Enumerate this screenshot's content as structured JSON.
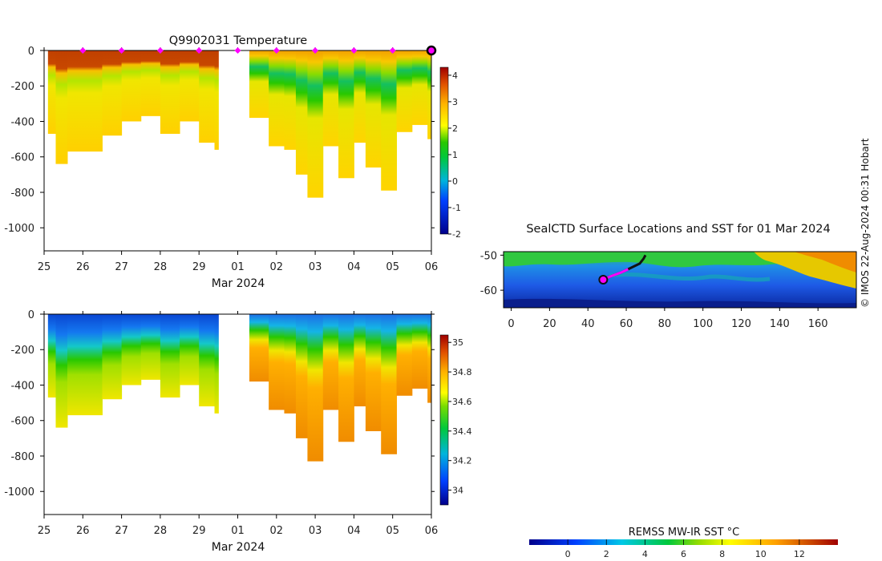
{
  "chart_data": [
    {
      "type": "heatmap",
      "id": "temperature",
      "title": "Q9902031  Temperature",
      "xlabel": "Mar 2024",
      "ylabel": "",
      "x_tick_labels": [
        "25",
        "26",
        "27",
        "28",
        "29",
        "01",
        "02",
        "03",
        "04",
        "05",
        "06"
      ],
      "y_ticks": [
        0,
        -200,
        -400,
        -600,
        -800,
        -1000
      ],
      "y_tick_labels": [
        "0",
        "-200",
        "-400",
        "-600",
        "-800",
        "-1000"
      ],
      "ylim": [
        -1130,
        0
      ],
      "gap_days": [
        4.5,
        5.2
      ],
      "surface_markers_days": [
        1,
        2,
        3,
        4,
        5,
        6,
        7,
        8,
        9,
        10
      ],
      "current_position_day": 10.0,
      "colorbar": {
        "min": -2,
        "max": 4.3,
        "ticks": [
          4,
          3,
          2,
          1,
          0,
          -1,
          -2
        ],
        "tick_labels": [
          "4",
          "3",
          "2",
          "1",
          "0",
          "-1",
          "-2"
        ]
      },
      "profile_depths": [
        {
          "day": 0.1,
          "depth": 470
        },
        {
          "day": 0.3,
          "depth": 640
        },
        {
          "day": 0.6,
          "depth": 570
        },
        {
          "day": 1.0,
          "depth": 570
        },
        {
          "day": 1.5,
          "depth": 480
        },
        {
          "day": 2.0,
          "depth": 400
        },
        {
          "day": 2.5,
          "depth": 370
        },
        {
          "day": 3.0,
          "depth": 470
        },
        {
          "day": 3.5,
          "depth": 400
        },
        {
          "day": 4.0,
          "depth": 520
        },
        {
          "day": 4.4,
          "depth": 560
        },
        {
          "day": 5.3,
          "depth": 380
        },
        {
          "day": 5.8,
          "depth": 540
        },
        {
          "day": 6.2,
          "depth": 560
        },
        {
          "day": 6.5,
          "depth": 700
        },
        {
          "day": 6.8,
          "depth": 830
        },
        {
          "day": 7.2,
          "depth": 540
        },
        {
          "day": 7.6,
          "depth": 720
        },
        {
          "day": 8.0,
          "depth": 520
        },
        {
          "day": 8.3,
          "depth": 660
        },
        {
          "day": 8.7,
          "depth": 790
        },
        {
          "day": 9.1,
          "depth": 460
        },
        {
          "day": 9.5,
          "depth": 420
        },
        {
          "day": 9.9,
          "depth": 500
        }
      ]
    },
    {
      "type": "heatmap",
      "id": "salinity",
      "title": "",
      "xlabel": "Mar 2024",
      "ylabel": "",
      "x_tick_labels": [
        "25",
        "26",
        "27",
        "28",
        "29",
        "01",
        "02",
        "03",
        "04",
        "05",
        "06"
      ],
      "y_ticks": [
        0,
        -200,
        -400,
        -600,
        -800,
        -1000
      ],
      "y_tick_labels": [
        "0",
        "-200",
        "-400",
        "-600",
        "-800",
        "-1000"
      ],
      "ylim": [
        -1130,
        0
      ],
      "colorbar": {
        "min": 33.9,
        "max": 35.05,
        "ticks": [
          35,
          34.8,
          34.6,
          34.4,
          34.2,
          34
        ],
        "tick_labels": [
          "35",
          "34.8",
          "34.6",
          "34.4",
          "34.2",
          "34"
        ]
      }
    },
    {
      "type": "heatmap",
      "id": "sst_map",
      "title": "SealCTD Surface Locations and SST for 01 Mar 2024",
      "x_ticks": [
        0,
        20,
        40,
        60,
        80,
        100,
        120,
        140,
        160
      ],
      "x_tick_labels": [
        "0",
        "20",
        "40",
        "60",
        "80",
        "100",
        "120",
        "140",
        "160"
      ],
      "y_ticks": [
        -50,
        -60
      ],
      "y_tick_labels": [
        "-50",
        "-60"
      ],
      "xlim": [
        -4,
        180
      ],
      "ylim": [
        -65,
        -49
      ],
      "track_longitude": [
        48,
        52,
        57,
        61,
        64,
        67,
        69,
        70
      ],
      "track_latitude": [
        -57,
        -56,
        -55,
        -54,
        -53.2,
        -52.4,
        -51,
        -50
      ],
      "current_position": {
        "longitude": 48,
        "latitude": -57
      },
      "colorbar": {
        "label": "REMSS MW-IR SST °C",
        "ticks": [
          0,
          2,
          4,
          6,
          8,
          10,
          12
        ],
        "tick_labels": [
          "0",
          "2",
          "4",
          "6",
          "8",
          "10",
          "12"
        ],
        "min": -2,
        "max": 14
      }
    }
  ],
  "footer": {
    "credit": "© IMOS 22-Aug-2024 00:31 Hobart"
  }
}
